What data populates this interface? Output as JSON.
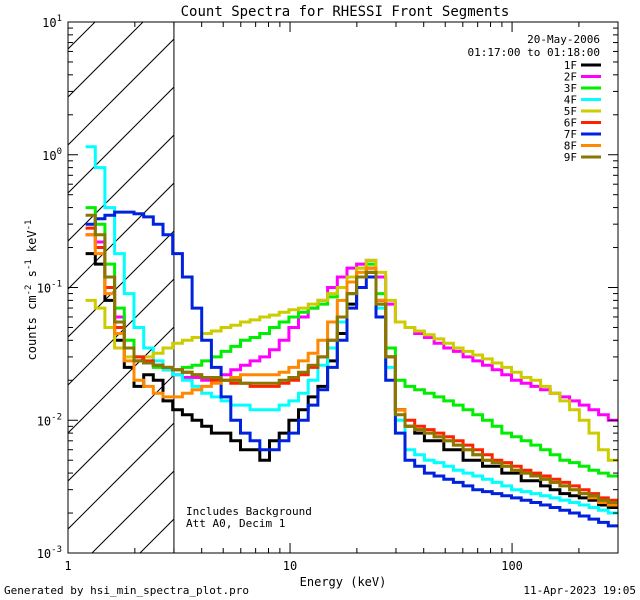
{
  "chart_data": {
    "type": "line",
    "title": "Count Spectra for RHESSI Front Segments",
    "xlabel": "Energy (keV)",
    "ylabel_parts": {
      "base": "counts cm",
      "exp1": "-2",
      "mid": " s",
      "exp2": "-1",
      "end": " keV",
      "exp3": "-1"
    },
    "x_scale": "log",
    "y_scale": "log",
    "xlim": [
      1,
      300
    ],
    "ylim": [
      0.001,
      10
    ],
    "x_ticks": [
      {
        "value": 1,
        "label": "1"
      },
      {
        "value": 10,
        "label": "10"
      },
      {
        "value": 100,
        "label": "100"
      }
    ],
    "y_ticks": [
      {
        "value": 0.001,
        "base": "10",
        "exp": "-3"
      },
      {
        "value": 0.01,
        "base": "10",
        "exp": "-2"
      },
      {
        "value": 0.1,
        "base": "10",
        "exp": "-1"
      },
      {
        "value": 1,
        "base": "10",
        "exp": "0"
      },
      {
        "value": 10,
        "base": "10",
        "exp": "1"
      }
    ],
    "date_label": "20-May-2006",
    "time_range_label": "01:17:00 to 01:18:00",
    "hatched_region_max_kev": 3.0,
    "annotations": [
      "Includes Background",
      "Att A0, Decim 1"
    ],
    "legend_position": "top-right",
    "series": [
      {
        "name": "1F",
        "color": "#000000",
        "values": [
          0.18,
          0.15,
          0.08,
          0.04,
          0.025,
          0.018,
          0.022,
          0.02,
          0.014,
          0.012,
          0.011,
          0.01,
          0.009,
          0.008,
          0.008,
          0.007,
          0.006,
          0.006,
          0.005,
          0.007,
          0.008,
          0.01,
          0.012,
          0.015,
          0.018,
          0.028,
          0.045,
          0.075,
          0.12,
          0.14,
          0.08,
          0.03,
          0.012,
          0.009,
          0.008,
          0.007,
          0.007,
          0.006,
          0.006,
          0.005,
          0.005,
          0.0045,
          0.0045,
          0.004,
          0.004,
          0.0035,
          0.0035,
          0.0032,
          0.003,
          0.0028,
          0.0027,
          0.0026,
          0.0025,
          0.0023,
          0.0022
        ]
      },
      {
        "name": "2F",
        "color": "#ff00ff",
        "values": [
          0.25,
          0.22,
          0.12,
          0.06,
          0.035,
          0.028,
          0.027,
          0.026,
          0.024,
          0.022,
          0.021,
          0.021,
          0.02,
          0.021,
          0.022,
          0.024,
          0.026,
          0.028,
          0.03,
          0.034,
          0.04,
          0.05,
          0.06,
          0.07,
          0.08,
          0.1,
          0.12,
          0.14,
          0.15,
          0.16,
          0.12,
          0.075,
          0.055,
          0.05,
          0.045,
          0.042,
          0.038,
          0.035,
          0.033,
          0.03,
          0.028,
          0.026,
          0.024,
          0.022,
          0.02,
          0.019,
          0.018,
          0.017,
          0.016,
          0.015,
          0.014,
          0.013,
          0.012,
          0.011,
          0.01
        ]
      },
      {
        "name": "3F",
        "color": "#00ee00",
        "values": [
          0.4,
          0.3,
          0.15,
          0.07,
          0.04,
          0.03,
          0.027,
          0.025,
          0.024,
          0.024,
          0.025,
          0.026,
          0.028,
          0.03,
          0.033,
          0.036,
          0.04,
          0.042,
          0.045,
          0.05,
          0.055,
          0.06,
          0.065,
          0.07,
          0.075,
          0.085,
          0.1,
          0.12,
          0.14,
          0.15,
          0.09,
          0.035,
          0.02,
          0.018,
          0.017,
          0.016,
          0.015,
          0.014,
          0.013,
          0.012,
          0.011,
          0.01,
          0.009,
          0.008,
          0.0075,
          0.007,
          0.0065,
          0.006,
          0.0055,
          0.005,
          0.0048,
          0.0045,
          0.0042,
          0.004,
          0.0038
        ]
      },
      {
        "name": "4F",
        "color": "#00ffff",
        "values": [
          1.15,
          0.8,
          0.4,
          0.18,
          0.09,
          0.05,
          0.035,
          0.028,
          0.024,
          0.022,
          0.02,
          0.018,
          0.016,
          0.015,
          0.014,
          0.013,
          0.013,
          0.012,
          0.012,
          0.012,
          0.013,
          0.014,
          0.016,
          0.02,
          0.026,
          0.035,
          0.055,
          0.09,
          0.12,
          0.13,
          0.07,
          0.025,
          0.01,
          0.006,
          0.0055,
          0.005,
          0.0048,
          0.0045,
          0.0042,
          0.004,
          0.0038,
          0.0036,
          0.0034,
          0.0032,
          0.003,
          0.0029,
          0.0028,
          0.0027,
          0.0026,
          0.0025,
          0.0024,
          0.0023,
          0.0022,
          0.0021,
          0.002
        ]
      },
      {
        "name": "5F",
        "color": "#cccc00",
        "values": [
          0.08,
          0.07,
          0.05,
          0.035,
          0.03,
          0.028,
          0.03,
          0.032,
          0.035,
          0.038,
          0.04,
          0.042,
          0.045,
          0.047,
          0.05,
          0.052,
          0.055,
          0.057,
          0.06,
          0.062,
          0.065,
          0.068,
          0.07,
          0.075,
          0.08,
          0.09,
          0.1,
          0.12,
          0.14,
          0.16,
          0.13,
          0.08,
          0.055,
          0.05,
          0.047,
          0.044,
          0.041,
          0.038,
          0.035,
          0.033,
          0.031,
          0.029,
          0.027,
          0.025,
          0.023,
          0.021,
          0.02,
          0.018,
          0.016,
          0.014,
          0.012,
          0.01,
          0.008,
          0.006,
          0.005
        ]
      },
      {
        "name": "6F",
        "color": "#ff2200",
        "values": [
          0.28,
          0.2,
          0.1,
          0.05,
          0.035,
          0.03,
          0.028,
          0.026,
          0.025,
          0.024,
          0.023,
          0.022,
          0.021,
          0.02,
          0.02,
          0.019,
          0.019,
          0.018,
          0.018,
          0.018,
          0.019,
          0.02,
          0.022,
          0.025,
          0.03,
          0.04,
          0.06,
          0.09,
          0.12,
          0.13,
          0.075,
          0.03,
          0.012,
          0.01,
          0.009,
          0.0085,
          0.008,
          0.0075,
          0.007,
          0.0065,
          0.006,
          0.0055,
          0.005,
          0.0048,
          0.0045,
          0.0042,
          0.004,
          0.0038,
          0.0036,
          0.0034,
          0.0032,
          0.003,
          0.0028,
          0.0026,
          0.0025
        ]
      },
      {
        "name": "7F",
        "color": "#0022dd",
        "values": [
          0.3,
          0.33,
          0.35,
          0.37,
          0.37,
          0.36,
          0.34,
          0.3,
          0.25,
          0.18,
          0.12,
          0.07,
          0.04,
          0.025,
          0.015,
          0.01,
          0.008,
          0.007,
          0.006,
          0.006,
          0.007,
          0.008,
          0.01,
          0.013,
          0.017,
          0.025,
          0.04,
          0.07,
          0.1,
          0.12,
          0.06,
          0.02,
          0.008,
          0.005,
          0.0045,
          0.004,
          0.0038,
          0.0036,
          0.0034,
          0.0032,
          0.003,
          0.0029,
          0.0028,
          0.0027,
          0.0026,
          0.0025,
          0.0024,
          0.0023,
          0.0022,
          0.0021,
          0.002,
          0.0019,
          0.0018,
          0.0017,
          0.0016
        ]
      },
      {
        "name": "8F",
        "color": "#ff8800",
        "values": [
          0.25,
          0.18,
          0.09,
          0.045,
          0.028,
          0.02,
          0.018,
          0.016,
          0.015,
          0.015,
          0.016,
          0.017,
          0.018,
          0.019,
          0.02,
          0.021,
          0.022,
          0.022,
          0.022,
          0.022,
          0.023,
          0.025,
          0.028,
          0.032,
          0.04,
          0.055,
          0.08,
          0.11,
          0.13,
          0.14,
          0.08,
          0.03,
          0.012,
          0.009,
          0.0085,
          0.008,
          0.0075,
          0.007,
          0.0065,
          0.006,
          0.0055,
          0.005,
          0.0048,
          0.0045,
          0.0042,
          0.004,
          0.0038,
          0.0036,
          0.0034,
          0.0032,
          0.003,
          0.0028,
          0.0026,
          0.0024,
          0.0023
        ]
      },
      {
        "name": "9F",
        "color": "#887700",
        "values": [
          0.35,
          0.25,
          0.12,
          0.055,
          0.035,
          0.028,
          0.027,
          0.026,
          0.025,
          0.024,
          0.023,
          0.022,
          0.021,
          0.021,
          0.02,
          0.02,
          0.019,
          0.019,
          0.019,
          0.019,
          0.02,
          0.021,
          0.023,
          0.026,
          0.03,
          0.04,
          0.06,
          0.09,
          0.12,
          0.13,
          0.075,
          0.03,
          0.011,
          0.009,
          0.0085,
          0.008,
          0.0075,
          0.007,
          0.0065,
          0.006,
          0.0055,
          0.005,
          0.0048,
          0.0045,
          0.0042,
          0.004,
          0.0038,
          0.0036,
          0.0034,
          0.0032,
          0.003,
          0.0028,
          0.0027,
          0.0025,
          0.0024
        ]
      }
    ]
  },
  "footer": {
    "generator": "Generated by hsi_min_spectra_plot.pro",
    "timestamp": "11-Apr-2023 19:05"
  }
}
